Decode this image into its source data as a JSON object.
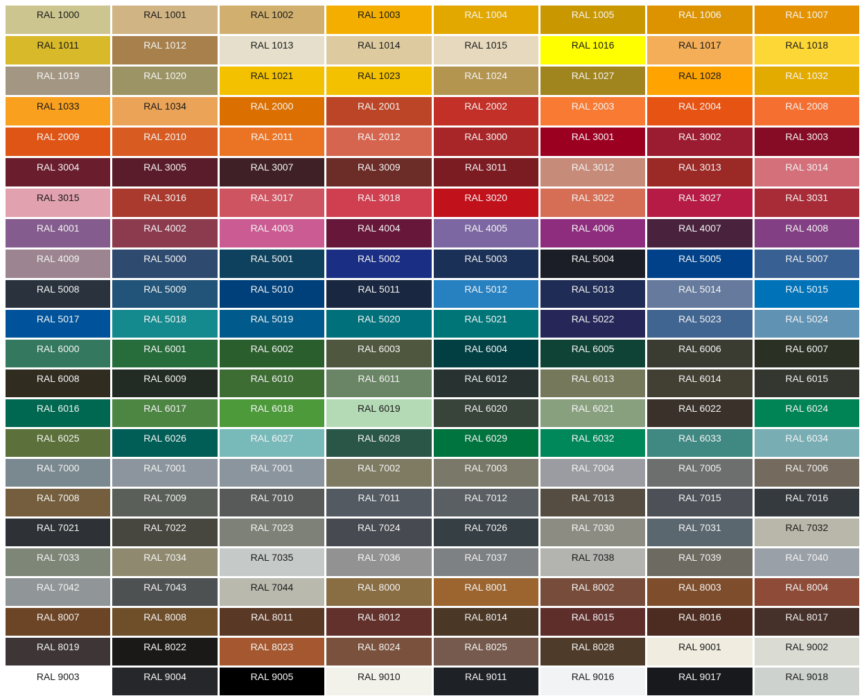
{
  "dark_text_color": "#1a1a1a",
  "light_text_color": "#f4f4f4",
  "rows": [
    [
      [
        "RAL 1000",
        "#CCC58F",
        "dark"
      ],
      [
        "RAL 1001",
        "#D1B484",
        "dark"
      ],
      [
        "RAL 1002",
        "#D1B06F",
        "dark"
      ],
      [
        "RAL 1003",
        "#F3AE00",
        "dark"
      ],
      [
        "RAL 1004",
        "#E2A800",
        "light"
      ],
      [
        "RAL 1005",
        "#C99700",
        "light"
      ],
      [
        "RAL 1006",
        "#DD9300",
        "light"
      ],
      [
        "RAL 1007",
        "#E59200",
        "light"
      ]
    ],
    [
      [
        "RAL 1011",
        "#D8B92A",
        "dark"
      ],
      [
        "RAL 1012",
        "#A7804C",
        "light"
      ],
      [
        "RAL 1013",
        "#E6DFCC",
        "dark"
      ],
      [
        "RAL 1014",
        "#DDCA9F",
        "dark"
      ],
      [
        "RAL 1015",
        "#E6D9BD",
        "dark"
      ],
      [
        "RAL 1016",
        "#FFFF00",
        "dark"
      ],
      [
        "RAL 1017",
        "#F4AE58",
        "dark"
      ],
      [
        "RAL 1018",
        "#FDD735",
        "dark"
      ]
    ],
    [
      [
        "RAL 1019",
        "#A39683",
        "light"
      ],
      [
        "RAL 1020",
        "#9C9465",
        "light"
      ],
      [
        "RAL 1021",
        "#F3C100",
        "dark"
      ],
      [
        "RAL 1023",
        "#F4C100",
        "dark"
      ],
      [
        "RAL 1024",
        "#B49550",
        "light"
      ],
      [
        "RAL 1027",
        "#A0841E",
        "light"
      ],
      [
        "RAL 1028",
        "#FFA300",
        "dark"
      ],
      [
        "RAL 1032",
        "#E3AA00",
        "light"
      ]
    ],
    [
      [
        "RAL 1033",
        "#F9A01F",
        "dark"
      ],
      [
        "RAL 1034",
        "#EBA457",
        "dark"
      ],
      [
        "RAL 2000",
        "#DB7001",
        "light"
      ],
      [
        "RAL 2001",
        "#BB4526",
        "light"
      ],
      [
        "RAL 2002",
        "#C23028",
        "light"
      ],
      [
        "RAL 2003",
        "#F87A33",
        "light"
      ],
      [
        "RAL 2004",
        "#E75313",
        "light"
      ],
      [
        "RAL 2008",
        "#F56F31",
        "light"
      ]
    ],
    [
      [
        "RAL 2009",
        "#DE5516",
        "light"
      ],
      [
        "RAL 2010",
        "#D85C22",
        "light"
      ],
      [
        "RAL 2011",
        "#EB7424",
        "light"
      ],
      [
        "RAL 2012",
        "#D6654F",
        "light"
      ],
      [
        "RAL 3000",
        "#A82628",
        "light"
      ],
      [
        "RAL 3001",
        "#9C0021",
        "light"
      ],
      [
        "RAL 3002",
        "#9B1B30",
        "light"
      ],
      [
        "RAL 3003",
        "#850C24",
        "light"
      ]
    ],
    [
      [
        "RAL 3004",
        "#6A1E2D",
        "light"
      ],
      [
        "RAL 3005",
        "#5A1C2A",
        "light"
      ],
      [
        "RAL 3007",
        "#3F2027",
        "light"
      ],
      [
        "RAL 3009",
        "#6C2C28",
        "light"
      ],
      [
        "RAL 3011",
        "#7B1B22",
        "light"
      ],
      [
        "RAL 3012",
        "#C68B79",
        "light"
      ],
      [
        "RAL 3013",
        "#9B2A27",
        "light"
      ],
      [
        "RAL 3014",
        "#D3707A",
        "light"
      ]
    ],
    [
      [
        "RAL 3015",
        "#E1A1AF",
        "dark"
      ],
      [
        "RAL 3016",
        "#AA3A2D",
        "light"
      ],
      [
        "RAL 3017",
        "#CF5461",
        "light"
      ],
      [
        "RAL 3018",
        "#CF3F4F",
        "light"
      ],
      [
        "RAL 3020",
        "#C1121C",
        "light"
      ],
      [
        "RAL 3022",
        "#D56E55",
        "light"
      ],
      [
        "RAL 3027",
        "#B51B44",
        "light"
      ],
      [
        "RAL 3031",
        "#A82C38",
        "light"
      ]
    ],
    [
      [
        "RAL 4001",
        "#845C8D",
        "light"
      ],
      [
        "RAL 4002",
        "#8C3B4E",
        "light"
      ],
      [
        "RAL 4003",
        "#CB5C93",
        "light"
      ],
      [
        "RAL 4004",
        "#66173A",
        "light"
      ],
      [
        "RAL 4005",
        "#7D67A3",
        "light"
      ],
      [
        "RAL 4006",
        "#8E2C7E",
        "light"
      ],
      [
        "RAL 4007",
        "#49233E",
        "light"
      ],
      [
        "RAL 4008",
        "#833F83",
        "light"
      ]
    ],
    [
      [
        "RAL 4009",
        "#9C8590",
        "light"
      ],
      [
        "RAL 5000",
        "#2E4A6F",
        "light"
      ],
      [
        "RAL 5001",
        "#0D415D",
        "light"
      ],
      [
        "RAL 5002",
        "#1A2F84",
        "light"
      ],
      [
        "RAL 5003",
        "#1A3056",
        "light"
      ],
      [
        "RAL 5004",
        "#1B1E26",
        "light"
      ],
      [
        "RAL 5005",
        "#004189",
        "light"
      ],
      [
        "RAL 5007",
        "#386092",
        "light"
      ]
    ],
    [
      [
        "RAL 5008",
        "#2A333D",
        "light"
      ],
      [
        "RAL 5009",
        "#215478",
        "light"
      ],
      [
        "RAL 5010",
        "#00407A",
        "light"
      ],
      [
        "RAL 5011",
        "#1A2740",
        "light"
      ],
      [
        "RAL 5012",
        "#2781C1",
        "light"
      ],
      [
        "RAL 5013",
        "#1F2C55",
        "light"
      ],
      [
        "RAL 5014",
        "#657A9C",
        "light"
      ],
      [
        "RAL 5015",
        "#0072B8",
        "light"
      ]
    ],
    [
      [
        "RAL 5017",
        "#00539A",
        "light"
      ],
      [
        "RAL 5018",
        "#148A8E",
        "light"
      ],
      [
        "RAL 5019",
        "#005A8C",
        "light"
      ],
      [
        "RAL 5020",
        "#00707A",
        "light"
      ],
      [
        "RAL 5021",
        "#007578",
        "light"
      ],
      [
        "RAL 5022",
        "#262758",
        "light"
      ],
      [
        "RAL 5023",
        "#416591",
        "light"
      ],
      [
        "RAL 5024",
        "#6092B4",
        "light"
      ]
    ],
    [
      [
        "RAL 6000",
        "#33785F",
        "light"
      ],
      [
        "RAL 6001",
        "#276D3B",
        "light"
      ],
      [
        "RAL 6002",
        "#2B5E2D",
        "light"
      ],
      [
        "RAL 6003",
        "#50573F",
        "light"
      ],
      [
        "RAL 6004",
        "#013F43",
        "light"
      ],
      [
        "RAL 6005",
        "#0F4335",
        "light"
      ],
      [
        "RAL 6006",
        "#3A3C32",
        "light"
      ],
      [
        "RAL 6007",
        "#2A3023",
        "light"
      ]
    ],
    [
      [
        "RAL 6008",
        "#302C20",
        "light"
      ],
      [
        "RAL 6009",
        "#232C24",
        "light"
      ],
      [
        "RAL 6010",
        "#3E6D34",
        "light"
      ],
      [
        "RAL 6011",
        "#6A8565",
        "light"
      ],
      [
        "RAL 6012",
        "#283331",
        "light"
      ],
      [
        "RAL 6013",
        "#76785B",
        "light"
      ],
      [
        "RAL 6014",
        "#423F33",
        "light"
      ],
      [
        "RAL 6015",
        "#343630",
        "light"
      ]
    ],
    [
      [
        "RAL 6016",
        "#006850",
        "light"
      ],
      [
        "RAL 6017",
        "#4D8543",
        "light"
      ],
      [
        "RAL 6018",
        "#4C9A3A",
        "light"
      ],
      [
        "RAL 6019",
        "#B4DAB5",
        "dark"
      ],
      [
        "RAL 6020",
        "#38433A",
        "light"
      ],
      [
        "RAL 6021",
        "#89A07F",
        "light"
      ],
      [
        "RAL 6022",
        "#3A322A",
        "light"
      ],
      [
        "RAL 6024",
        "#008456",
        "light"
      ]
    ],
    [
      [
        "RAL 6025",
        "#5B703A",
        "light"
      ],
      [
        "RAL 6026",
        "#005E56",
        "light"
      ],
      [
        "RAL 6027",
        "#78BAB9",
        "light"
      ],
      [
        "RAL 6028",
        "#2A5648",
        "light"
      ],
      [
        "RAL 6029",
        "#00743F",
        "light"
      ],
      [
        "RAL 6032",
        "#00875A",
        "light"
      ],
      [
        "RAL 6033",
        "#408882",
        "light"
      ],
      [
        "RAL 6034",
        "#77ADB3",
        "light"
      ]
    ],
    [
      [
        "RAL 7000",
        "#7A8890",
        "light"
      ],
      [
        "RAL 7001",
        "#8C959D",
        "light"
      ],
      [
        "RAL 7001",
        "#8A959E",
        "light"
      ],
      [
        "RAL 7002",
        "#7F7B62",
        "light"
      ],
      [
        "RAL 7003",
        "#7A7868",
        "light"
      ],
      [
        "RAL 7004",
        "#9B9CA1",
        "light"
      ],
      [
        "RAL 7005",
        "#6C6F6E",
        "light"
      ],
      [
        "RAL 7006",
        "#746A5E",
        "light"
      ]
    ],
    [
      [
        "RAL 7008",
        "#745E3D",
        "light"
      ],
      [
        "RAL 7009",
        "#5B5F59",
        "light"
      ],
      [
        "RAL 7010",
        "#575A58",
        "light"
      ],
      [
        "RAL 7011",
        "#535A62",
        "light"
      ],
      [
        "RAL 7012",
        "#595F62",
        "light"
      ],
      [
        "RAL 7013",
        "#554D42",
        "light"
      ],
      [
        "RAL 7015",
        "#4D5057",
        "light"
      ],
      [
        "RAL 7016",
        "#343A3E",
        "light"
      ]
    ],
    [
      [
        "RAL 7021",
        "#2E3135",
        "light"
      ],
      [
        "RAL 7022",
        "#47463F",
        "light"
      ],
      [
        "RAL 7023",
        "#7E8177",
        "light"
      ],
      [
        "RAL 7024",
        "#484A51",
        "light"
      ],
      [
        "RAL 7026",
        "#363F44",
        "light"
      ],
      [
        "RAL 7030",
        "#8D8C83",
        "light"
      ],
      [
        "RAL 7031",
        "#5A676F",
        "light"
      ],
      [
        "RAL 7032",
        "#B8B7A9",
        "dark"
      ]
    ],
    [
      [
        "RAL 7033",
        "#7D8677",
        "light"
      ],
      [
        "RAL 7034",
        "#8F8A6F",
        "light"
      ],
      [
        "RAL 7035",
        "#C5C9C8",
        "dark"
      ],
      [
        "RAL 7036",
        "#939293",
        "light"
      ],
      [
        "RAL 7037",
        "#7E8183",
        "light"
      ],
      [
        "RAL 7038",
        "#B3B4B0",
        "dark"
      ],
      [
        "RAL 7039",
        "#6D6A62",
        "light"
      ],
      [
        "RAL 7040",
        "#9AA0A7",
        "light"
      ]
    ],
    [
      [
        "RAL 7042",
        "#909597",
        "light"
      ],
      [
        "RAL 7043",
        "#4E5152",
        "light"
      ],
      [
        "RAL 7044",
        "#BAB9AE",
        "dark"
      ],
      [
        "RAL 8000",
        "#896D43",
        "light"
      ],
      [
        "RAL 8001",
        "#9C6530",
        "light"
      ],
      [
        "RAL 8002",
        "#774C3A",
        "light"
      ],
      [
        "RAL 8003",
        "#7E4D2B",
        "light"
      ],
      [
        "RAL 8004",
        "#8E4C38",
        "light"
      ]
    ],
    [
      [
        "RAL 8007",
        "#6C4526",
        "light"
      ],
      [
        "RAL 8008",
        "#6F4F2A",
        "light"
      ],
      [
        "RAL 8011",
        "#5A3826",
        "light"
      ],
      [
        "RAL 8012",
        "#62312B",
        "light"
      ],
      [
        "RAL 8014",
        "#4A3726",
        "light"
      ],
      [
        "RAL 8015",
        "#5E2E2B",
        "light"
      ],
      [
        "RAL 8016",
        "#4C2C20",
        "light"
      ],
      [
        "RAL 8017",
        "#45302A",
        "light"
      ]
    ],
    [
      [
        "RAL 8019",
        "#3D3536",
        "light"
      ],
      [
        "RAL 8022",
        "#1B1818",
        "light"
      ],
      [
        "RAL 8023",
        "#A5582F",
        "light"
      ],
      [
        "RAL 8024",
        "#7A513D",
        "light"
      ],
      [
        "RAL 8025",
        "#755A4D",
        "light"
      ],
      [
        "RAL 8028",
        "#4E3B2A",
        "light"
      ],
      [
        "RAL 9001",
        "#F0ECDF",
        "dark"
      ],
      [
        "RAL 9002",
        "#DADBD3",
        "dark"
      ]
    ],
    [
      [
        "RAL 9003",
        "#FFFFFF",
        "dark"
      ],
      [
        "RAL 9004",
        "#26272A",
        "light"
      ],
      [
        "RAL 9005",
        "#000000",
        "light"
      ],
      [
        "RAL 9010",
        "#F2F1EA",
        "dark"
      ],
      [
        "RAL 9011",
        "#1E2125",
        "light"
      ],
      [
        "RAL 9016",
        "#F2F3F5",
        "dark"
      ],
      [
        "RAL 9017",
        "#18191C",
        "light"
      ],
      [
        "RAL 9018",
        "#CDD2CF",
        "dark"
      ]
    ]
  ]
}
